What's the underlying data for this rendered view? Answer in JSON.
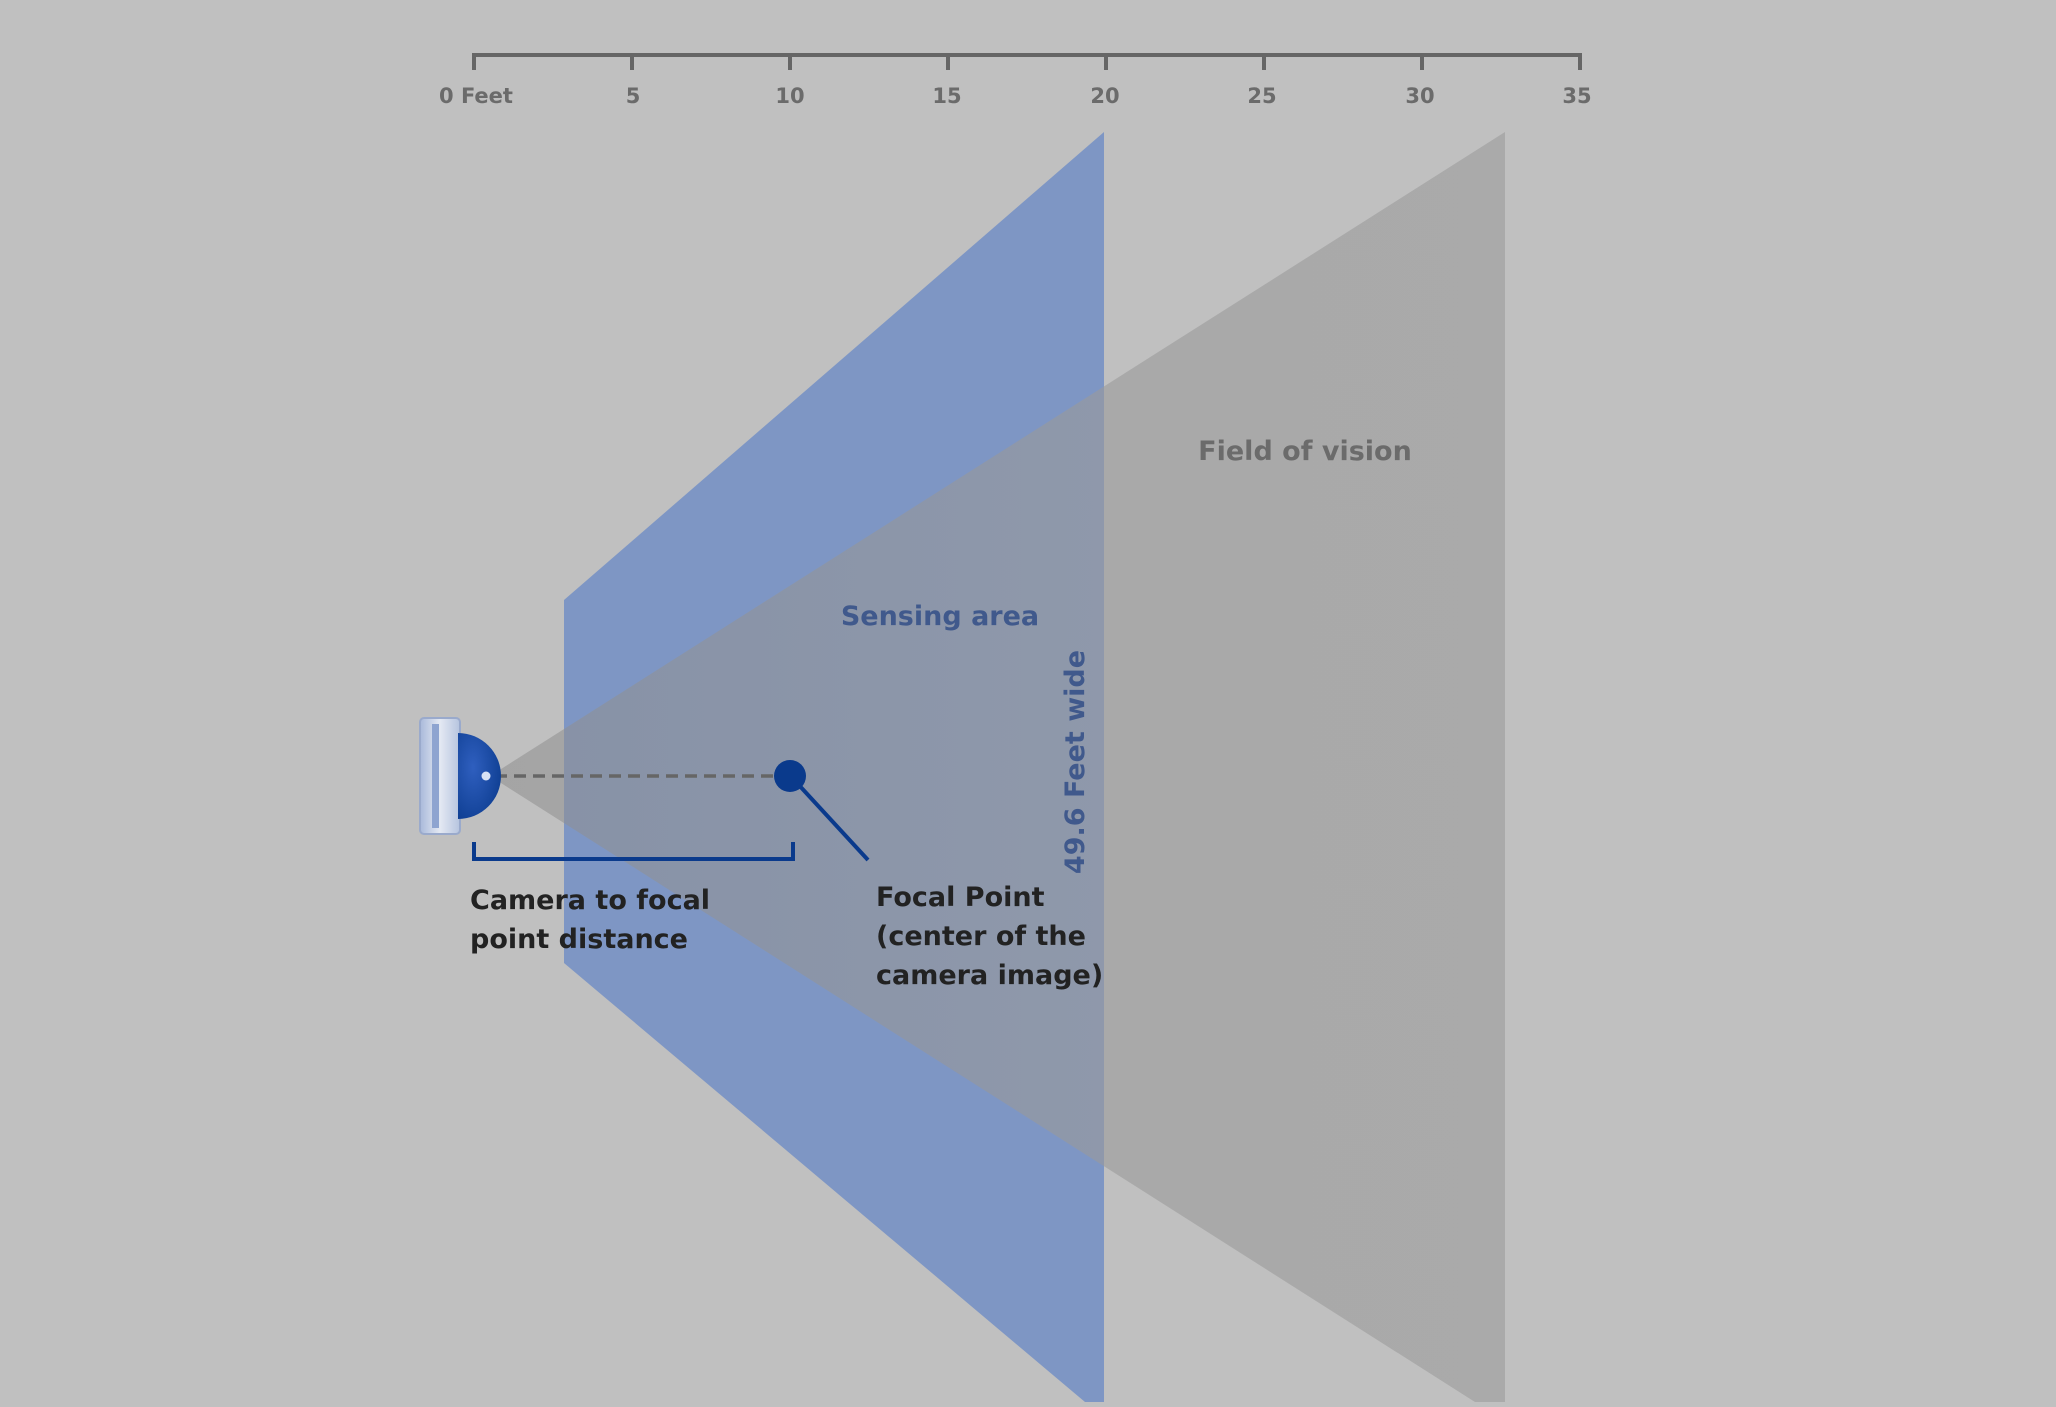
{
  "colors": {
    "background": "#c0c0c0",
    "scale": "#666666",
    "scale_text": "#6b6b6b",
    "sensing_fill": "#6f8cc4",
    "fov_fill": "#9e9e9e",
    "dark_blue": "#0a3a8c",
    "label_dark": "#222222",
    "sensing_label": "#40598c",
    "fov_label": "#6b6b6b"
  },
  "scale": {
    "ticks": [
      "0 Feet",
      "5",
      "10",
      "15",
      "20",
      "25",
      "30",
      "35"
    ]
  },
  "labels": {
    "field_of_vision": "Field of vision",
    "sensing_area": "Sensing area",
    "width": "49.6 Feet wide",
    "camera_distance_line1": "Camera to focal",
    "camera_distance_line2": "point distance",
    "focal_point_line1": "Focal Point",
    "focal_point_line2": "(center of the",
    "focal_point_line3": "camera image)"
  },
  "icons": {
    "camera": "camera-icon",
    "focal_point": "focal-point-icon"
  }
}
